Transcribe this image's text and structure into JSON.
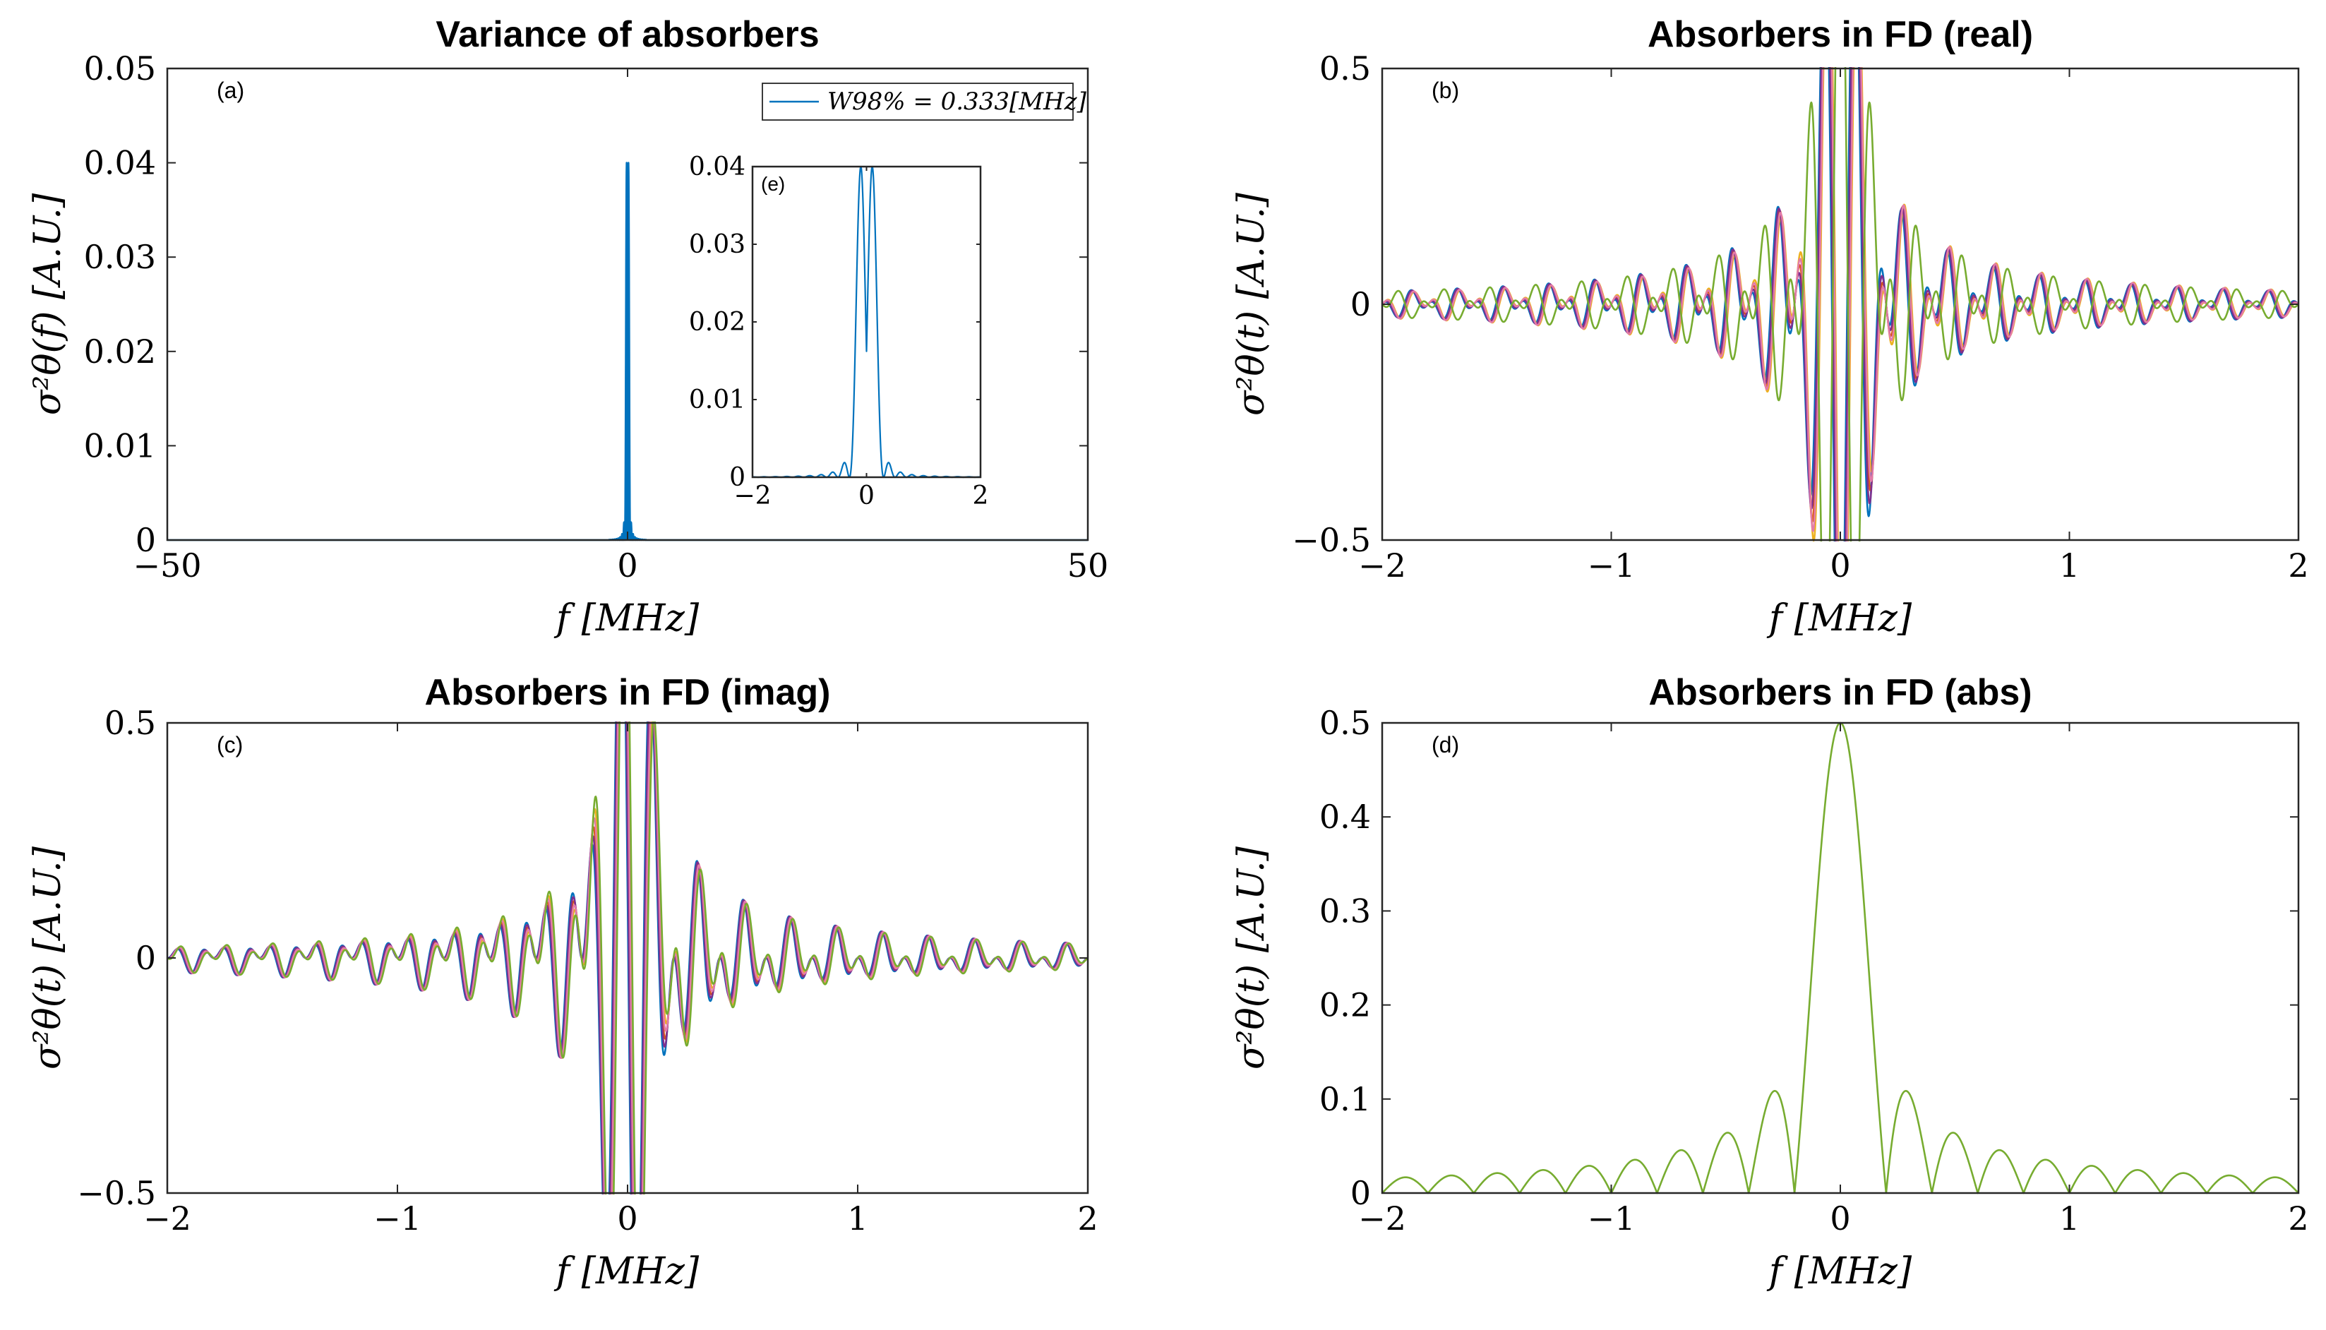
{
  "colors": {
    "blue": "#0072BD",
    "orange": "#D95319",
    "yellow": "#EDB120",
    "purple": "#7E2F8E",
    "green": "#77AC30",
    "cyan": "#4DBEEE",
    "pink": "#E37BA8"
  },
  "chart_data": [
    {
      "id": "a",
      "type": "line",
      "title": "Variance of absorbers",
      "panel_label": "(a)",
      "xlabel": "f    [MHz]",
      "ylabel": "σ²θ(f)   [A.U.]",
      "xlim": [
        -50,
        50
      ],
      "ylim": [
        0,
        0.05
      ],
      "xticks": [
        -50,
        0,
        50
      ],
      "xtick_labels": [
        "−50",
        "0",
        "50"
      ],
      "yticks": [
        0,
        0.01,
        0.02,
        0.03,
        0.04,
        0.05
      ],
      "ytick_labels": [
        "0",
        "0.01",
        "0.02",
        "0.03",
        "0.04",
        "0.05"
      ],
      "legend": [
        "W98% = 0.333[MHz]"
      ],
      "legend_position": "top-right",
      "series": [
        {
          "name": "variance",
          "color": "blue",
          "model": "sinc2",
          "peak": 0.04,
          "zero_spacing": 0.2,
          "offsets": [
            -0.1,
            0.1
          ]
        }
      ]
    },
    {
      "id": "e",
      "type": "line",
      "title": "",
      "panel_label": "(e)",
      "xlim": [
        -2,
        2
      ],
      "ylim": [
        0,
        0.04
      ],
      "xticks": [
        -2,
        0,
        2
      ],
      "xtick_labels": [
        "−2",
        "0",
        "2"
      ],
      "yticks": [
        0,
        0.01,
        0.02,
        0.03,
        0.04
      ],
      "ytick_labels": [
        "0",
        "0.01",
        "0.02",
        "0.03",
        "0.04"
      ],
      "series": [
        {
          "name": "variance-zoom",
          "color": "blue",
          "model": "sinc2",
          "peak": 0.04,
          "zero_spacing": 0.2,
          "offsets": [
            -0.1,
            0.1
          ]
        }
      ]
    },
    {
      "id": "b",
      "type": "line",
      "title": "Absorbers in FD (real)",
      "panel_label": "(b)",
      "xlabel": "f    [MHz]",
      "ylabel": "σ²θ(t)   [A.U.]",
      "xlim": [
        -2,
        2
      ],
      "ylim": [
        -0.5,
        0.5
      ],
      "xticks": [
        -2,
        -1,
        0,
        1,
        2
      ],
      "xtick_labels": [
        "−2",
        "−1",
        "0",
        "1",
        "2"
      ],
      "yticks": [
        -0.5,
        0,
        0.5
      ],
      "ytick_labels": [
        "−0.5",
        "0",
        "0.5"
      ],
      "series": [
        {
          "name": "s1",
          "color": "blue",
          "model": "sinc_cos",
          "amp": 0.5,
          "shift": 3.3
        },
        {
          "name": "s2",
          "color": "orange",
          "model": "sinc_cos",
          "amp": 0.5,
          "shift": 2.9
        },
        {
          "name": "s3",
          "color": "yellow",
          "model": "sinc_cos",
          "amp": 0.5,
          "shift": 2.6
        },
        {
          "name": "s4",
          "color": "purple",
          "model": "sinc_cos",
          "amp": 0.5,
          "shift": 3.1
        },
        {
          "name": "s5",
          "color": "pink",
          "model": "sinc_cos",
          "amp": 0.5,
          "shift": 2.75
        },
        {
          "name": "s6",
          "color": "green",
          "model": "sinc_cos",
          "amp": 0.5,
          "shift": 0.0
        }
      ]
    },
    {
      "id": "c",
      "type": "line",
      "title": "Absorbers in FD (imag)",
      "panel_label": "(c)",
      "xlabel": "f    [MHz]",
      "ylabel": "σ²θ(t)   [A.U.]",
      "xlim": [
        -2,
        2
      ],
      "ylim": [
        -0.5,
        0.5
      ],
      "xticks": [
        -2,
        -1,
        0,
        1,
        2
      ],
      "xtick_labels": [
        "−2",
        "−1",
        "0",
        "1",
        "2"
      ],
      "yticks": [
        -0.5,
        0,
        0.5
      ],
      "ytick_labels": [
        "−0.5",
        "0",
        "0.5"
      ],
      "series": [
        {
          "name": "s1",
          "color": "blue",
          "model": "sinc_sin",
          "amp": 0.5,
          "shift": 3.0
        },
        {
          "name": "s2",
          "color": "orange",
          "model": "sinc_sin",
          "amp": 0.5,
          "shift": 2.7
        },
        {
          "name": "s3",
          "color": "yellow",
          "model": "sinc_sin",
          "amp": 0.5,
          "shift": 2.4
        },
        {
          "name": "s4",
          "color": "purple",
          "model": "sinc_sin",
          "amp": 0.5,
          "shift": 2.85
        },
        {
          "name": "s5",
          "color": "pink",
          "model": "sinc_sin",
          "amp": 0.5,
          "shift": 2.55
        },
        {
          "name": "s6",
          "color": "green",
          "model": "sinc_sin",
          "amp": 0.5,
          "shift": 2.2
        }
      ]
    },
    {
      "id": "d",
      "type": "line",
      "title": "Absorbers in FD (abs)",
      "panel_label": "(d)",
      "xlabel": "f    [MHz]",
      "ylabel": "σ²θ(t)   [A.U.]",
      "xlim": [
        -2,
        2
      ],
      "ylim": [
        0,
        0.5
      ],
      "xticks": [
        -2,
        -1,
        0,
        1,
        2
      ],
      "xtick_labels": [
        "−2",
        "−1",
        "0",
        "1",
        "2"
      ],
      "yticks": [
        0,
        0.1,
        0.2,
        0.3,
        0.4,
        0.5
      ],
      "ytick_labels": [
        "0",
        "0.1",
        "0.2",
        "0.3",
        "0.4",
        "0.5"
      ],
      "series": [
        {
          "name": "abs",
          "color": "green",
          "model": "abs_sinc",
          "amp": 0.5
        }
      ]
    }
  ]
}
